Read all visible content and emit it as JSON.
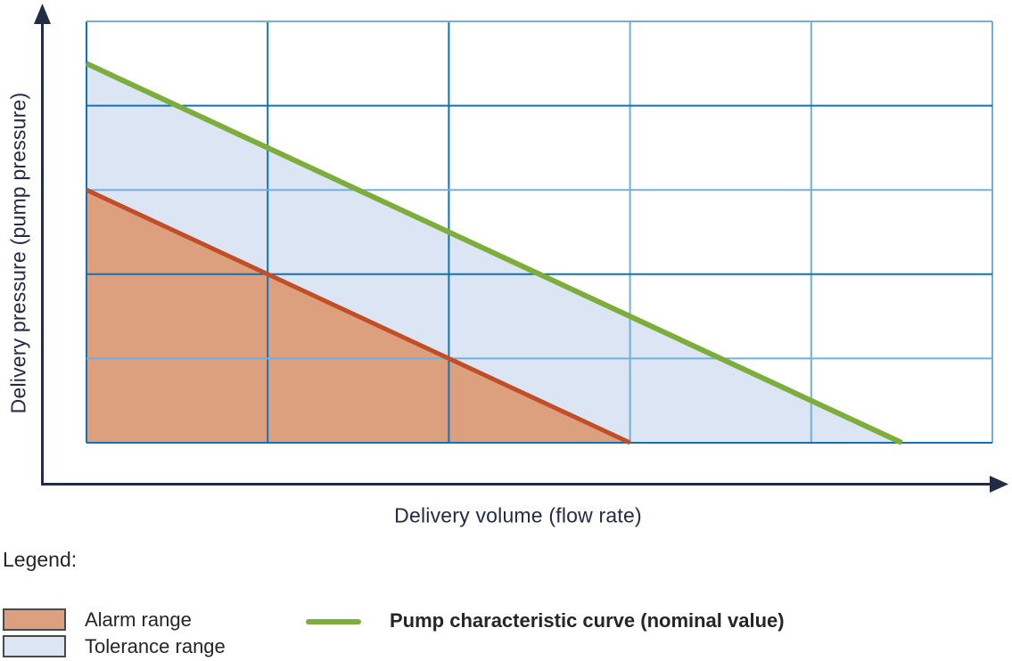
{
  "colors": {
    "navy": "#232B45",
    "text_dark": "#262626",
    "grid_dark": "#1173B5",
    "grid_light": "#74AFDA",
    "green": "#7DAE3C",
    "orange_line": "#C24E27",
    "alarm_fill": "#DCA07E",
    "tolerance_fill": "#DBE5F4",
    "swatch_border": "#4A4A4A"
  },
  "chart_data": {
    "type": "area",
    "title": "",
    "x_axis_label": "Delivery volume (flow rate)",
    "y_axis_label": "Delivery pressure (pump pressure)",
    "x_range": [
      0,
      5
    ],
    "y_range": [
      0,
      5
    ],
    "tick_labels": "none (qualitative axes with arrowheads)",
    "grid": {
      "columns": 5,
      "rows": 5,
      "v_shades": [
        "dark",
        "dark",
        "dark",
        "light",
        "light",
        "light"
      ],
      "h_shades": [
        "dark",
        "light",
        "dark",
        "light",
        "dark",
        "light"
      ]
    },
    "regions": [
      {
        "name": "tolerance-range",
        "fill_key": "tolerance_fill",
        "polygon": [
          [
            0,
            0
          ],
          [
            0,
            4.5
          ],
          [
            4.5,
            0
          ]
        ]
      },
      {
        "name": "alarm-range",
        "fill_key": "alarm_fill",
        "polygon": [
          [
            0,
            0
          ],
          [
            0,
            3
          ],
          [
            3,
            0
          ]
        ]
      }
    ],
    "series": [
      {
        "name": "alarm-boundary",
        "color_key": "orange_line",
        "stroke_width": 5,
        "points": [
          [
            0,
            3
          ],
          [
            3,
            0
          ]
        ]
      },
      {
        "name": "nominal-curve",
        "color_key": "green",
        "stroke_width": 6,
        "points": [
          [
            0,
            4.5
          ],
          [
            4.5,
            0
          ]
        ]
      }
    ],
    "legend_position": "below chart, bottom-left"
  },
  "legend": {
    "title": "Legend:",
    "items": [
      {
        "label": "Alarm range",
        "swatch": "alarm_fill"
      },
      {
        "label": "Tolerance range",
        "swatch": "tolerance_fill"
      },
      {
        "label": "Pump characteristic curve (nominal value)",
        "swatch": "green_line"
      }
    ]
  }
}
